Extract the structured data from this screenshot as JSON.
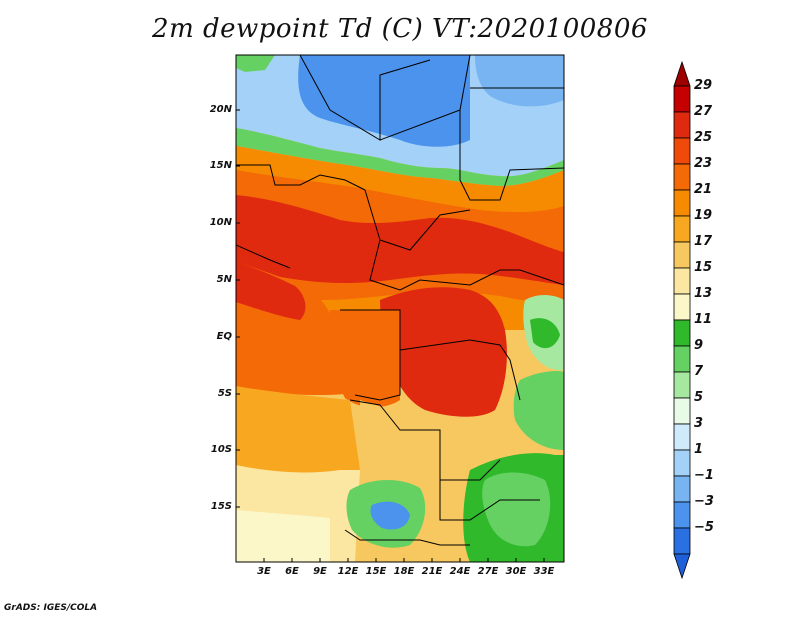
{
  "title": "2m dewpoint Td (C) VT:2020100806",
  "credit": "GrADS: IGES/COLA",
  "map": {
    "lat_labels": [
      "20N",
      "15N",
      "10N",
      "5N",
      "EQ",
      "5S",
      "10S",
      "15S"
    ],
    "lon_labels": [
      "3E",
      "6E",
      "9E",
      "12E",
      "15E",
      "18E",
      "21E",
      "24E",
      "27E",
      "30E",
      "33E"
    ]
  },
  "colorbar": {
    "labels": [
      "29",
      "27",
      "25",
      "23",
      "21",
      "19",
      "17",
      "15",
      "13",
      "11",
      "9",
      "7",
      "5",
      "3",
      "1",
      "-1",
      "-3",
      "-5"
    ],
    "colors": [
      "#9e0000",
      "#c40000",
      "#e02a10",
      "#f04a0a",
      "#f46a06",
      "#f68a00",
      "#f7a820",
      "#f8c860",
      "#fbe6a2",
      "#fbf7c8",
      "#2fb92b",
      "#66d163",
      "#a6e8a0",
      "#e8fbe6",
      "#cfeafb",
      "#a4d1f7",
      "#78b4f2",
      "#4b93ec",
      "#2a70e3",
      "#1f5fd8"
    ]
  }
}
